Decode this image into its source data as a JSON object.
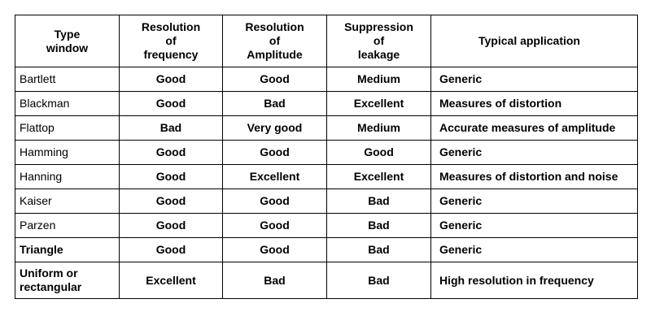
{
  "table": {
    "headers": [
      "Type\nwindow",
      "Resolution\nof\nfrequency",
      "Resolution\nof\nAmplitude",
      "Suppression\nof\nleakage",
      "Typical application"
    ],
    "rows": [
      {
        "window": "Bartlett",
        "frequency": "Good",
        "amplitude": "Good",
        "leakage": "Medium",
        "application": "Generic"
      },
      {
        "window": "Blackman",
        "frequency": "Good",
        "amplitude": "Bad",
        "leakage": "Excellent",
        "application": "Measures of distortion"
      },
      {
        "window": "Flattop",
        "frequency": "Bad",
        "amplitude": "Very good",
        "leakage": "Medium",
        "application": "Accurate measures of amplitude"
      },
      {
        "window": "Hamming",
        "frequency": "Good",
        "amplitude": "Good",
        "leakage": "Good",
        "application": "Generic"
      },
      {
        "window": "Hanning",
        "frequency": "Good",
        "amplitude": "Excellent",
        "leakage": "Excellent",
        "application": "Measures of distortion and noise"
      },
      {
        "window": "Kaiser",
        "frequency": "Good",
        "amplitude": "Good",
        "leakage": "Bad",
        "application": "Generic"
      },
      {
        "window": "Parzen",
        "frequency": "Good",
        "amplitude": "Good",
        "leakage": "Bad",
        "application": "Generic"
      },
      {
        "window": "Triangle",
        "frequency": "Good",
        "amplitude": "Good",
        "leakage": "Bad",
        "application": "Generic"
      },
      {
        "window": "Uniform or\nrectangular",
        "frequency": "Excellent",
        "amplitude": "Bad",
        "leakage": "Bad",
        "application": "High resolution in frequency"
      }
    ]
  }
}
